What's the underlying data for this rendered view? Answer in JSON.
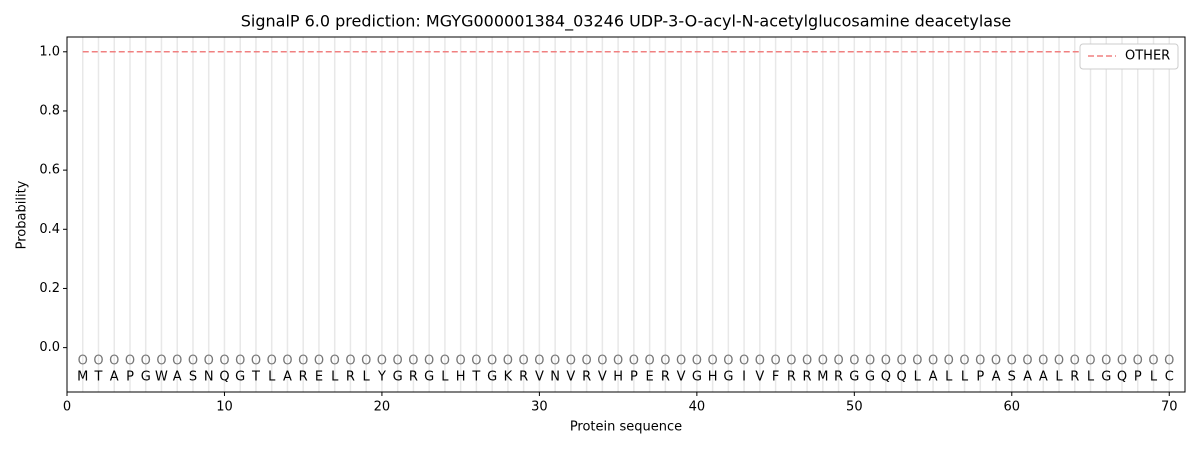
{
  "chart_data": {
    "type": "line",
    "title": "SignalP 6.0 prediction: MGYG000001384_03246 UDP-3-O-acyl-N-acetylglucosamine deacetylase",
    "x_label": "Protein sequence",
    "y_label": "Probability",
    "xlim": [
      0,
      71
    ],
    "ylim": [
      -0.15,
      1.05
    ],
    "xticks": [
      0,
      10,
      20,
      30,
      40,
      50,
      60,
      70
    ],
    "yticks": [
      {
        "value": 0,
        "label": "0.0"
      },
      {
        "value": 0.2,
        "label": "0.2"
      },
      {
        "value": 0.4,
        "label": "0.4"
      },
      {
        "value": 0.6,
        "label": "0.6"
      },
      {
        "value": 0.8,
        "label": "0.8"
      },
      {
        "value": 1,
        "label": "1.0"
      }
    ],
    "legend_position": "upper right",
    "x": [
      1,
      2,
      3,
      4,
      5,
      6,
      7,
      8,
      9,
      10,
      11,
      12,
      13,
      14,
      15,
      16,
      17,
      18,
      19,
      20,
      21,
      22,
      23,
      24,
      25,
      26,
      27,
      28,
      29,
      30,
      31,
      32,
      33,
      34,
      35,
      36,
      37,
      38,
      39,
      40,
      41,
      42,
      43,
      44,
      45,
      46,
      47,
      48,
      49,
      50,
      51,
      52,
      53,
      54,
      55,
      56,
      57,
      58,
      59,
      60,
      61,
      62,
      63,
      64,
      65,
      66,
      67,
      68,
      69,
      70
    ],
    "sequence": [
      "M",
      "T",
      "A",
      "P",
      "G",
      "W",
      "A",
      "S",
      "N",
      "Q",
      "G",
      "T",
      "L",
      "A",
      "R",
      "E",
      "L",
      "R",
      "L",
      "Y",
      "G",
      "R",
      "G",
      "L",
      "H",
      "T",
      "G",
      "K",
      "R",
      "V",
      "N",
      "V",
      "R",
      "V",
      "H",
      "P",
      "E",
      "R",
      "V",
      "G",
      "H",
      "G",
      "I",
      "V",
      "F",
      "R",
      "R",
      "M",
      "R",
      "G",
      "G",
      "Q",
      "Q",
      "L",
      "A",
      "L",
      "L",
      "P",
      "A",
      "S",
      "A",
      "A",
      "L",
      "R",
      "L",
      "G",
      "Q",
      "P",
      "L",
      "C"
    ],
    "state_labels": [
      "O",
      "O",
      "O",
      "O",
      "O",
      "O",
      "O",
      "O",
      "O",
      "O",
      "O",
      "O",
      "O",
      "O",
      "O",
      "O",
      "O",
      "O",
      "O",
      "O",
      "O",
      "O",
      "O",
      "O",
      "O",
      "O",
      "O",
      "O",
      "O",
      "O",
      "O",
      "O",
      "O",
      "O",
      "O",
      "O",
      "O",
      "O",
      "O",
      "O",
      "O",
      "O",
      "O",
      "O",
      "O",
      "O",
      "O",
      "O",
      "O",
      "O",
      "O",
      "O",
      "O",
      "O",
      "O",
      "O",
      "O",
      "O",
      "O",
      "O",
      "O",
      "O",
      "O",
      "O",
      "O",
      "O",
      "O",
      "O",
      "O",
      "O"
    ],
    "series": [
      {
        "name": "OTHER",
        "color": "#f08080",
        "dashed": true,
        "values": [
          1,
          1,
          1,
          1,
          1,
          1,
          1,
          1,
          1,
          1,
          1,
          1,
          1,
          1,
          1,
          1,
          1,
          1,
          1,
          1,
          1,
          1,
          1,
          1,
          1,
          1,
          1,
          1,
          1,
          1,
          1,
          1,
          1,
          1,
          1,
          1,
          1,
          1,
          1,
          1,
          1,
          1,
          1,
          1,
          1,
          1,
          1,
          1,
          1,
          1,
          1,
          1,
          1,
          1,
          1,
          1,
          1,
          1,
          1,
          1,
          1,
          1,
          1,
          1,
          1,
          1,
          1,
          1,
          1,
          1
        ]
      }
    ]
  }
}
